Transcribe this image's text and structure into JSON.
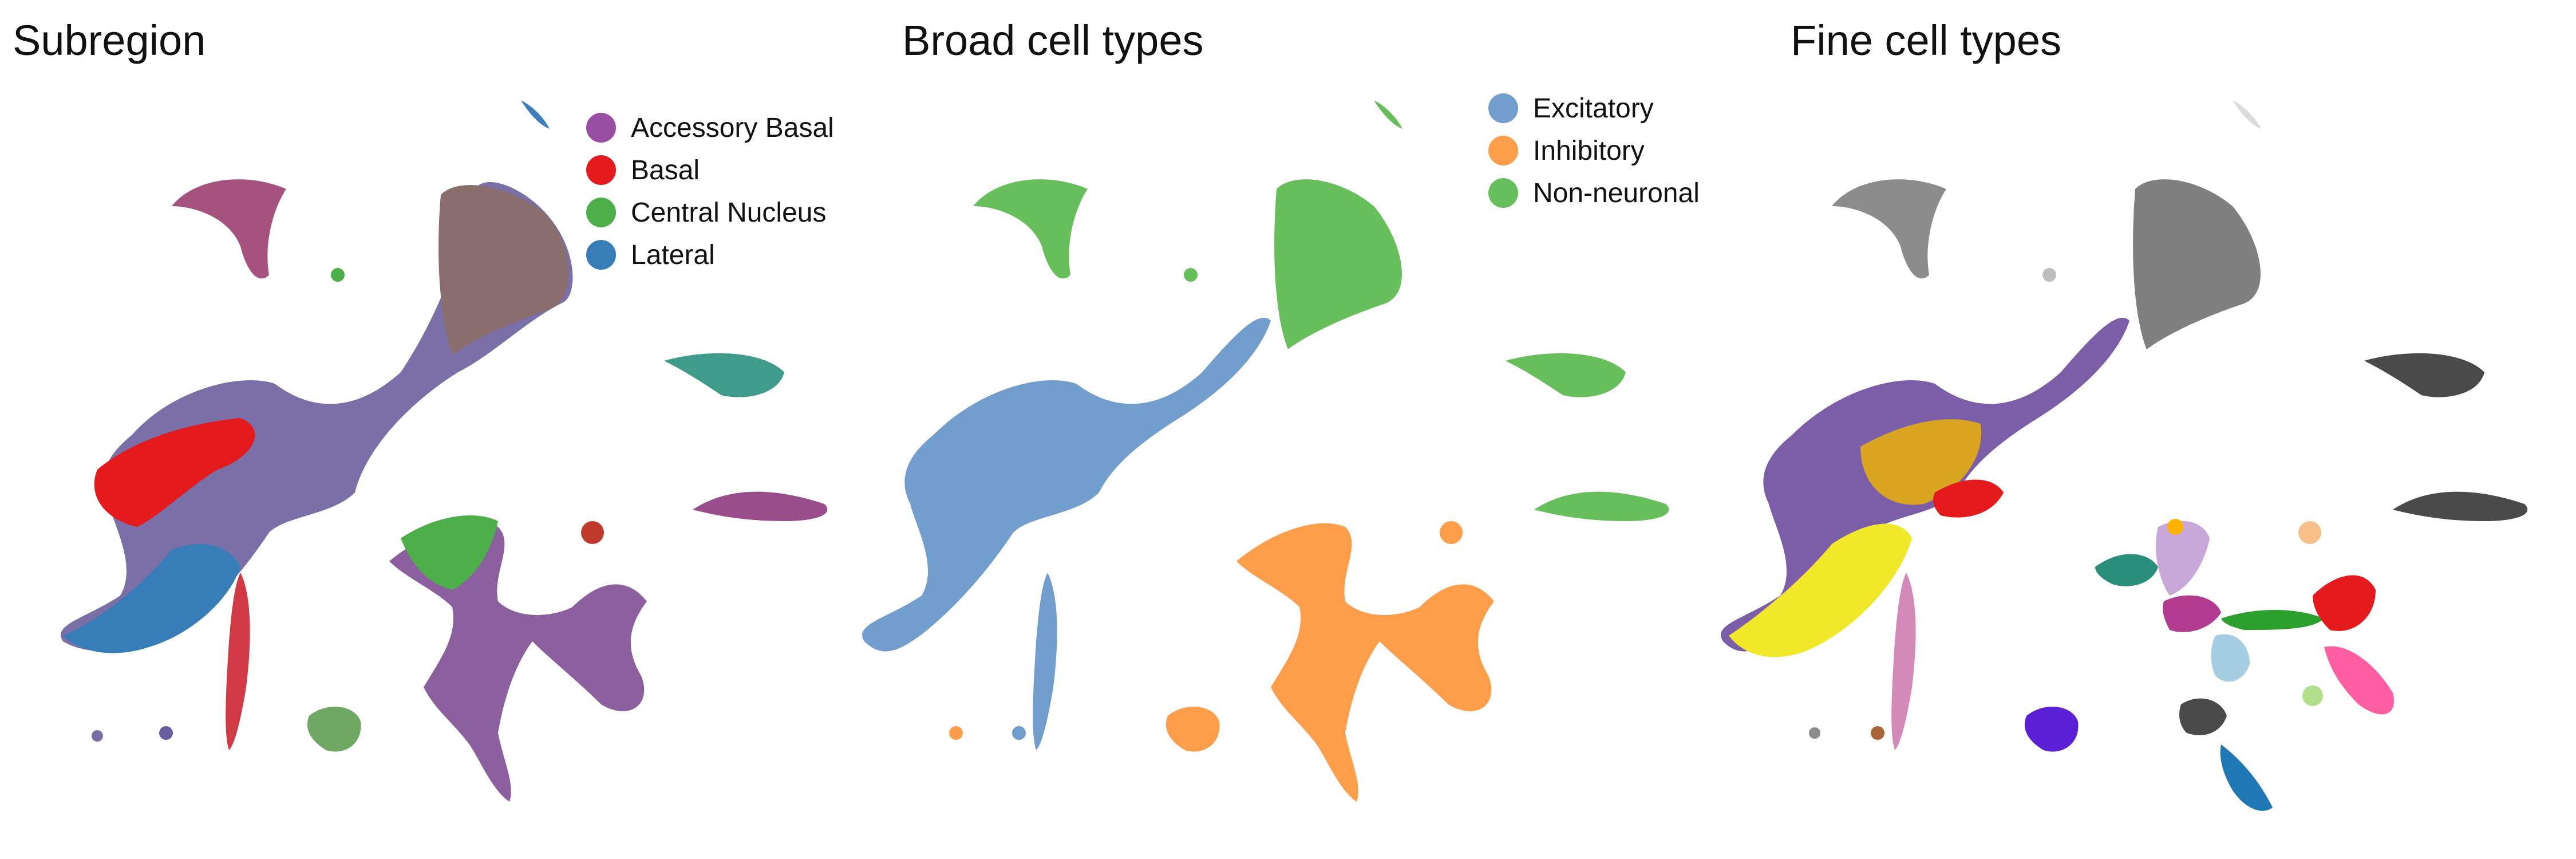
{
  "chart_data": [
    {
      "type": "scatter",
      "title": "Subregion",
      "legend": {
        "placement": "top-right",
        "entries": [
          {
            "label": "Accessory Basal",
            "color": "#984ea3"
          },
          {
            "label": "Basal",
            "color": "#e41a1c"
          },
          {
            "label": "Central Nucleus",
            "color": "#4daf4a"
          },
          {
            "label": "Lateral",
            "color": "#377eb8"
          }
        ]
      },
      "grid": false,
      "axes_visible": false
    },
    {
      "type": "scatter",
      "title": "Broad cell types",
      "legend": {
        "placement": "top-right",
        "entries": [
          {
            "label": "Excitatory",
            "color": "#729ece"
          },
          {
            "label": "Inhibitory",
            "color": "#ff9e4a"
          },
          {
            "label": "Non-neuronal",
            "color": "#67bf5c"
          }
        ]
      },
      "grid": false,
      "axes_visible": false
    },
    {
      "type": "scatter",
      "title": "Fine cell types",
      "legend": null,
      "palette": [
        "#8c8c8c",
        "#6e6e6e",
        "#4a4a4a",
        "#bdbdbd",
        "#dcdcdc",
        "#7b5ea7",
        "#f2e82a",
        "#e41a1c",
        "#4daf4a",
        "#d48ab8",
        "#c8a8d8",
        "#1f78b4",
        "#5b1fd6",
        "#a6cee3",
        "#b2df8a",
        "#ff5fa2",
        "#a8653a",
        "#2a8f7a",
        "#f7c08a",
        "#ffb300",
        "#2ca02c"
      ],
      "grid": false,
      "axes_visible": false
    }
  ]
}
